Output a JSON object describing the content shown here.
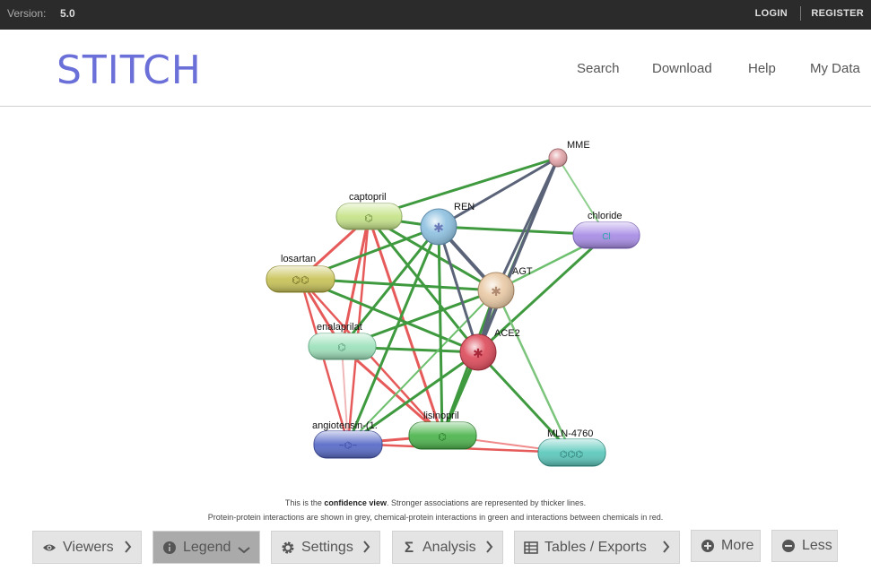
{
  "topbar": {
    "version_label": "Version:",
    "version_value": "5.0",
    "login": "LOGIN",
    "register": "REGISTER"
  },
  "header": {
    "logo": "STITCH",
    "nav": [
      "Search",
      "Download",
      "Help",
      "My Data"
    ]
  },
  "network": {
    "nodes": [
      {
        "label": "MME",
        "kind": "protein",
        "color": "#e2a3a8"
      },
      {
        "label": "captopril",
        "kind": "chemical",
        "color": "#c6e48a"
      },
      {
        "label": "REN",
        "kind": "protein",
        "color": "#8dc0e0"
      },
      {
        "label": "chloride",
        "kind": "chemical",
        "color": "#a98ee6"
      },
      {
        "label": "losartan",
        "kind": "chemical",
        "color": "#c9c45a"
      },
      {
        "label": "AGT",
        "kind": "protein",
        "color": "#e9c9a4"
      },
      {
        "label": "enalaprilat",
        "kind": "chemical",
        "color": "#9fe2bc"
      },
      {
        "label": "ACE2",
        "kind": "protein",
        "color": "#dd4a5a"
      },
      {
        "label": "angiotensin-(1.",
        "kind": "chemical",
        "color": "#5a6cc8"
      },
      {
        "label": "lisinopril",
        "kind": "chemical",
        "color": "#4fb64f"
      },
      {
        "label": "MLN-4760",
        "kind": "chemical",
        "color": "#5ec9bd"
      }
    ],
    "edge_colors": {
      "protein_protein": "#5b6379",
      "chemical_protein": "#3f9a3f",
      "chemical_chemical": "#e65a5a"
    }
  },
  "caption": {
    "line1_pre": "This is the ",
    "line1_bold": "confidence view",
    "line1_post": ". Stronger associations are represented by thicker lines.",
    "line2": "Protein-protein interactions are shown in grey, chemical-protein interactions in green and interactions between chemicals in red."
  },
  "toolbar": {
    "viewers": "Viewers",
    "legend": "Legend",
    "settings": "Settings",
    "analysis": "Analysis",
    "tables": "Tables / Exports",
    "more": "More",
    "less": "Less"
  }
}
